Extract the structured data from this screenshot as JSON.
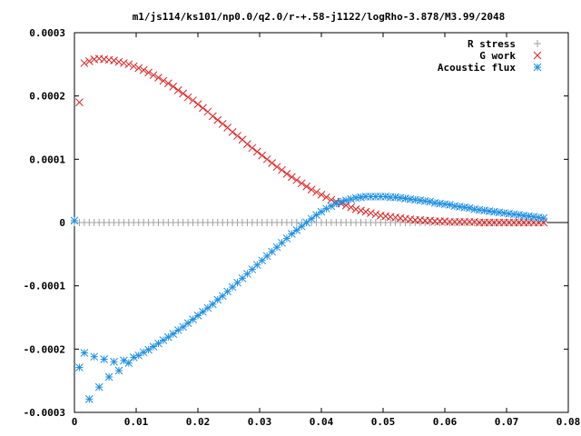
{
  "chart_data": {
    "type": "scatter",
    "title": "m1/js114/ks101/np0.0/q2.0/r-+.58-j1122/logRho-3.878/M3.99/2048",
    "xlabel": "",
    "ylabel": "",
    "xlim": [
      0,
      0.08
    ],
    "ylim": [
      -0.0003,
      0.0003
    ],
    "x_ticks": [
      0,
      0.01,
      0.02,
      0.03,
      0.04,
      0.05,
      0.06,
      0.07,
      0.08
    ],
    "x_tick_labels": [
      "0",
      "0.01",
      "0.02",
      "0.03",
      "0.04",
      "0.05",
      "0.06",
      "0.07",
      "0.08"
    ],
    "y_ticks": [
      -0.0003,
      -0.0002,
      -0.0001,
      0,
      0.0001,
      0.0002,
      0.0003
    ],
    "y_tick_labels": [
      "-0.0003",
      "-0.0002",
      "-0.0001",
      "0",
      "0.0001",
      "0.0002",
      "0.0003"
    ],
    "grid": false,
    "legend_position": "top-right",
    "series": [
      {
        "name": "R stress",
        "marker": "plus",
        "color": "#a0a0a0",
        "points": [
          [
            0.0,
            0
          ],
          [
            0.0008,
            0
          ],
          [
            0.0016,
            0
          ],
          [
            0.0024,
            0
          ],
          [
            0.0032,
            0
          ],
          [
            0.004,
            0
          ],
          [
            0.0048,
            0
          ],
          [
            0.0056,
            0
          ],
          [
            0.0064,
            0
          ],
          [
            0.0072,
            0
          ],
          [
            0.008,
            0
          ],
          [
            0.0088,
            0
          ],
          [
            0.0096,
            0
          ],
          [
            0.0104,
            0
          ],
          [
            0.0112,
            0
          ],
          [
            0.012,
            0
          ],
          [
            0.0128,
            0
          ],
          [
            0.0136,
            0
          ],
          [
            0.0144,
            0
          ],
          [
            0.0152,
            0
          ],
          [
            0.016,
            0
          ],
          [
            0.0168,
            0
          ],
          [
            0.0176,
            0
          ],
          [
            0.0184,
            0
          ],
          [
            0.0192,
            0
          ],
          [
            0.02,
            0
          ],
          [
            0.0208,
            0
          ],
          [
            0.0216,
            0
          ],
          [
            0.0224,
            0
          ],
          [
            0.0232,
            0
          ],
          [
            0.024,
            0
          ],
          [
            0.0248,
            0
          ],
          [
            0.0256,
            0
          ],
          [
            0.0264,
            0
          ],
          [
            0.0272,
            0
          ],
          [
            0.028,
            0
          ],
          [
            0.0288,
            0
          ],
          [
            0.0296,
            0
          ],
          [
            0.0304,
            0
          ],
          [
            0.0312,
            0
          ],
          [
            0.032,
            0
          ],
          [
            0.0328,
            0
          ],
          [
            0.0336,
            0
          ],
          [
            0.0344,
            0
          ],
          [
            0.0352,
            0
          ],
          [
            0.036,
            0
          ],
          [
            0.0368,
            0
          ],
          [
            0.0376,
            0
          ],
          [
            0.0384,
            0
          ],
          [
            0.0392,
            0
          ],
          [
            0.04,
            0
          ],
          [
            0.0408,
            0
          ],
          [
            0.0416,
            0
          ],
          [
            0.0424,
            0
          ],
          [
            0.0432,
            0
          ],
          [
            0.044,
            0
          ],
          [
            0.0448,
            0
          ],
          [
            0.0456,
            0
          ],
          [
            0.0464,
            0
          ],
          [
            0.0472,
            0
          ],
          [
            0.048,
            0
          ],
          [
            0.0488,
            0
          ],
          [
            0.0496,
            0
          ],
          [
            0.0504,
            0
          ],
          [
            0.0512,
            0
          ],
          [
            0.052,
            0
          ],
          [
            0.0528,
            0
          ],
          [
            0.0536,
            0
          ],
          [
            0.0544,
            0
          ],
          [
            0.0552,
            0
          ],
          [
            0.056,
            0
          ],
          [
            0.0568,
            0
          ],
          [
            0.0576,
            0
          ],
          [
            0.0584,
            0
          ],
          [
            0.0592,
            0
          ],
          [
            0.06,
            0
          ],
          [
            0.0608,
            0
          ],
          [
            0.0616,
            0
          ],
          [
            0.0624,
            0
          ],
          [
            0.0632,
            0
          ],
          [
            0.064,
            0
          ],
          [
            0.0648,
            0
          ],
          [
            0.0656,
            0
          ],
          [
            0.0664,
            0
          ],
          [
            0.0672,
            0
          ],
          [
            0.068,
            0
          ],
          [
            0.0688,
            0
          ],
          [
            0.0696,
            0
          ],
          [
            0.0704,
            0
          ],
          [
            0.0712,
            0
          ],
          [
            0.072,
            0
          ],
          [
            0.0728,
            0
          ],
          [
            0.0736,
            0
          ],
          [
            0.0744,
            0
          ],
          [
            0.0752,
            0
          ],
          [
            0.076,
            0
          ]
        ]
      },
      {
        "name": "G work",
        "marker": "cross",
        "color": "#e02020",
        "points": [
          [
            0.0008,
            0.00019
          ],
          [
            0.0016,
            0.000252
          ],
          [
            0.0024,
            0.000255
          ],
          [
            0.0032,
            0.000258
          ],
          [
            0.004,
            0.000259
          ],
          [
            0.0048,
            0.000258
          ],
          [
            0.0056,
            0.000257
          ],
          [
            0.0064,
            0.000256
          ],
          [
            0.0072,
            0.000254
          ],
          [
            0.008,
            0.000252
          ],
          [
            0.0088,
            0.00025
          ],
          [
            0.0096,
            0.000247
          ],
          [
            0.0104,
            0.000244
          ],
          [
            0.0112,
            0.000241
          ],
          [
            0.012,
            0.000237
          ],
          [
            0.0128,
            0.000233
          ],
          [
            0.0136,
            0.000229
          ],
          [
            0.0144,
            0.000224
          ],
          [
            0.0152,
            0.00022
          ],
          [
            0.016,
            0.000215
          ],
          [
            0.0168,
            0.000209
          ],
          [
            0.0176,
            0.000204
          ],
          [
            0.0184,
            0.000198
          ],
          [
            0.0192,
            0.000193
          ],
          [
            0.02,
            0.000187
          ],
          [
            0.0208,
            0.000181
          ],
          [
            0.0216,
            0.000175
          ],
          [
            0.0224,
            0.000168
          ],
          [
            0.0232,
            0.000162
          ],
          [
            0.024,
            0.000156
          ],
          [
            0.0248,
            0.00015
          ],
          [
            0.0256,
            0.000143
          ],
          [
            0.0264,
            0.000137
          ],
          [
            0.0272,
            0.000131
          ],
          [
            0.028,
            0.000124
          ],
          [
            0.0288,
            0.000118
          ],
          [
            0.0296,
            0.000112
          ],
          [
            0.0304,
            0.000106
          ],
          [
            0.0312,
            0.0001
          ],
          [
            0.032,
            9.4e-05
          ],
          [
            0.0328,
            8.8e-05
          ],
          [
            0.0336,
            8.3e-05
          ],
          [
            0.0344,
            7.7e-05
          ],
          [
            0.0352,
            7.2e-05
          ],
          [
            0.036,
            6.7e-05
          ],
          [
            0.0368,
            6.2e-05
          ],
          [
            0.0376,
            5.7e-05
          ],
          [
            0.0384,
            5.2e-05
          ],
          [
            0.0392,
            4.8e-05
          ],
          [
            0.04,
            4.4e-05
          ],
          [
            0.0408,
            4e-05
          ],
          [
            0.0416,
            3.6e-05
          ],
          [
            0.0424,
            3.3e-05
          ],
          [
            0.0432,
            3e-05
          ],
          [
            0.044,
            2.7e-05
          ],
          [
            0.0448,
            2.4e-05
          ],
          [
            0.0456,
            2.1e-05
          ],
          [
            0.0464,
            1.9e-05
          ],
          [
            0.0472,
            1.7e-05
          ],
          [
            0.048,
            1.5e-05
          ],
          [
            0.0488,
            1.3e-05
          ],
          [
            0.0496,
            1.1e-05
          ],
          [
            0.0504,
            1e-05
          ],
          [
            0.0512,
            9e-06
          ],
          [
            0.052,
            8e-06
          ],
          [
            0.0528,
            7e-06
          ],
          [
            0.0536,
            6e-06
          ],
          [
            0.0544,
            5e-06
          ],
          [
            0.0552,
            4e-06
          ],
          [
            0.056,
            4e-06
          ],
          [
            0.0568,
            3e-06
          ],
          [
            0.0576,
            3e-06
          ],
          [
            0.0584,
            2e-06
          ],
          [
            0.0592,
            2e-06
          ],
          [
            0.06,
            2e-06
          ],
          [
            0.0608,
            1e-06
          ],
          [
            0.0616,
            1e-06
          ],
          [
            0.0624,
            1e-06
          ],
          [
            0.0632,
            1e-06
          ],
          [
            0.064,
            1e-06
          ],
          [
            0.0648,
            1e-06
          ],
          [
            0.0656,
            0
          ],
          [
            0.0664,
            0
          ],
          [
            0.0672,
            0
          ],
          [
            0.068,
            0
          ],
          [
            0.0688,
            0
          ],
          [
            0.0696,
            0
          ],
          [
            0.0704,
            0
          ],
          [
            0.0712,
            0
          ],
          [
            0.072,
            0
          ],
          [
            0.0728,
            0
          ],
          [
            0.0736,
            0
          ],
          [
            0.0744,
            0
          ],
          [
            0.0752,
            0
          ],
          [
            0.076,
            0
          ]
        ]
      },
      {
        "name": "Acoustic flux",
        "marker": "star",
        "color": "#1e8fe0",
        "points": [
          [
            0.0,
            3e-06
          ],
          [
            0.0008,
            -0.000229
          ],
          [
            0.0016,
            -0.000206
          ],
          [
            0.0024,
            -0.000279
          ],
          [
            0.0032,
            -0.000212
          ],
          [
            0.004,
            -0.00026
          ],
          [
            0.0048,
            -0.000216
          ],
          [
            0.0056,
            -0.000244
          ],
          [
            0.0064,
            -0.00022
          ],
          [
            0.0072,
            -0.000234
          ],
          [
            0.008,
            -0.000218
          ],
          [
            0.0088,
            -0.000222
          ],
          [
            0.0096,
            -0.000213
          ],
          [
            0.0104,
            -0.00021
          ],
          [
            0.0112,
            -0.000205
          ],
          [
            0.012,
            -0.000201
          ],
          [
            0.0128,
            -0.000196
          ],
          [
            0.0136,
            -0.000191
          ],
          [
            0.0144,
            -0.000186
          ],
          [
            0.0152,
            -0.000181
          ],
          [
            0.016,
            -0.000176
          ],
          [
            0.0168,
            -0.00017
          ],
          [
            0.0176,
            -0.000165
          ],
          [
            0.0184,
            -0.000159
          ],
          [
            0.0192,
            -0.000153
          ],
          [
            0.02,
            -0.000147
          ],
          [
            0.0208,
            -0.000141
          ],
          [
            0.0216,
            -0.000135
          ],
          [
            0.0224,
            -0.000129
          ],
          [
            0.0232,
            -0.000122
          ],
          [
            0.024,
            -0.000116
          ],
          [
            0.0248,
            -0.000109
          ],
          [
            0.0256,
            -0.000102
          ],
          [
            0.0264,
            -9.5e-05
          ],
          [
            0.0272,
            -8.8e-05
          ],
          [
            0.028,
            -8.1e-05
          ],
          [
            0.0288,
            -7.4e-05
          ],
          [
            0.0296,
            -6.7e-05
          ],
          [
            0.0304,
            -6e-05
          ],
          [
            0.0312,
            -5.3e-05
          ],
          [
            0.032,
            -4.6e-05
          ],
          [
            0.0328,
            -3.9e-05
          ],
          [
            0.0336,
            -3.2e-05
          ],
          [
            0.0344,
            -2.5e-05
          ],
          [
            0.0352,
            -1.8e-05
          ],
          [
            0.036,
            -1.2e-05
          ],
          [
            0.0368,
            -6e-06
          ],
          [
            0.0376,
            0
          ],
          [
            0.0384,
            6e-06
          ],
          [
            0.0392,
            1.2e-05
          ],
          [
            0.04,
            1.7e-05
          ],
          [
            0.0408,
            2.2e-05
          ],
          [
            0.0416,
            2.6e-05
          ],
          [
            0.0424,
            3e-05
          ],
          [
            0.0432,
            3.3e-05
          ],
          [
            0.044,
            3.5e-05
          ],
          [
            0.0448,
            3.7e-05
          ],
          [
            0.0456,
            3.9e-05
          ],
          [
            0.0464,
            4e-05
          ],
          [
            0.0472,
            4.1e-05
          ],
          [
            0.048,
            4.1e-05
          ],
          [
            0.0488,
            4.1e-05
          ],
          [
            0.0496,
            4.1e-05
          ],
          [
            0.0504,
            4.1e-05
          ],
          [
            0.0512,
            4e-05
          ],
          [
            0.052,
            4e-05
          ],
          [
            0.0528,
            3.9e-05
          ],
          [
            0.0536,
            3.8e-05
          ],
          [
            0.0544,
            3.7e-05
          ],
          [
            0.0552,
            3.6e-05
          ],
          [
            0.056,
            3.5e-05
          ],
          [
            0.0568,
            3.4e-05
          ],
          [
            0.0576,
            3.3e-05
          ],
          [
            0.0584,
            3.1e-05
          ],
          [
            0.0592,
            3e-05
          ],
          [
            0.06,
            2.9e-05
          ],
          [
            0.0608,
            2.8e-05
          ],
          [
            0.0616,
            2.6e-05
          ],
          [
            0.0624,
            2.5e-05
          ],
          [
            0.0632,
            2.4e-05
          ],
          [
            0.064,
            2.3e-05
          ],
          [
            0.0648,
            2.1e-05
          ],
          [
            0.0656,
            2e-05
          ],
          [
            0.0664,
            1.9e-05
          ],
          [
            0.0672,
            1.8e-05
          ],
          [
            0.068,
            1.7e-05
          ],
          [
            0.0688,
            1.6e-05
          ],
          [
            0.0696,
            1.5e-05
          ],
          [
            0.0704,
            1.4e-05
          ],
          [
            0.0712,
            1.3e-05
          ],
          [
            0.072,
            1.2e-05
          ],
          [
            0.0728,
            1.1e-05
          ],
          [
            0.0736,
            1e-05
          ],
          [
            0.0744,
            9e-06
          ],
          [
            0.0752,
            8e-06
          ],
          [
            0.076,
            7e-06
          ]
        ]
      }
    ]
  }
}
